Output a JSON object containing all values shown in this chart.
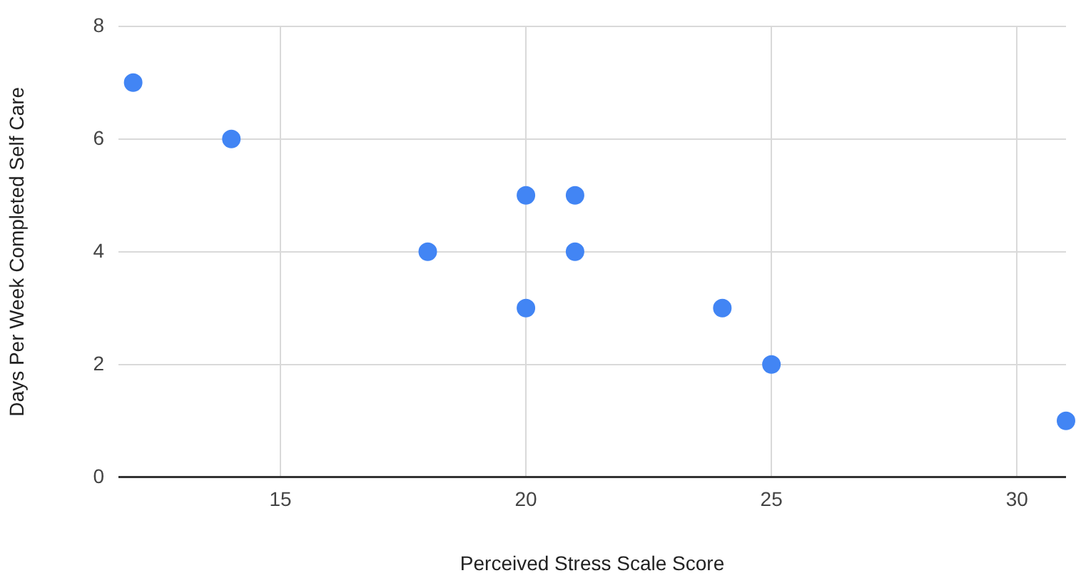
{
  "chart_data": {
    "type": "scatter",
    "xlabel": "Perceived Stress Scale Score",
    "ylabel": "Days Per Week Completed Self Care",
    "x": [
      12,
      14,
      18,
      20,
      20,
      21,
      21,
      24,
      25,
      31
    ],
    "values": [
      7,
      6,
      4,
      5,
      3,
      5,
      4,
      3,
      2,
      1
    ],
    "color": "#4285f4",
    "marker": "circle",
    "grid": true,
    "legend": false,
    "xlim": [
      11.7,
      31
    ],
    "xticks": [
      15,
      20,
      25,
      30
    ],
    "ylim": [
      0,
      8
    ],
    "yticks": [
      0,
      2,
      4,
      6,
      8
    ]
  }
}
